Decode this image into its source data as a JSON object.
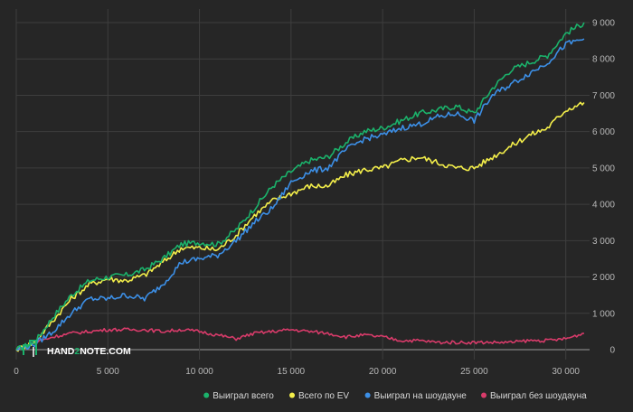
{
  "watermark": {
    "part1": "HAND",
    "part2": "2",
    "part3": "NOTE.COM"
  },
  "chart_data": {
    "type": "line",
    "title": "",
    "xlabel": "",
    "ylabel": "",
    "xlim": [
      0,
      31300
    ],
    "ylim": [
      -100,
      9100
    ],
    "x_ticks": [
      0,
      5000,
      10000,
      15000,
      20000,
      25000,
      30000
    ],
    "x_tick_labels": [
      "0",
      "5 000",
      "10 000",
      "15 000",
      "20 000",
      "25 000",
      "30 000"
    ],
    "y_ticks": [
      0,
      1000,
      2000,
      3000,
      4000,
      5000,
      6000,
      7000,
      8000,
      9000
    ],
    "y_tick_labels": [
      "0",
      "1 000",
      "2 000",
      "3 000",
      "4 000",
      "5 000",
      "6 000",
      "7 000",
      "8 000",
      "9 000"
    ],
    "y_axis_side": "right",
    "grid": true,
    "legend_position": "bottom-right",
    "x": [
      0,
      1000,
      2000,
      3000,
      4000,
      5000,
      6000,
      7000,
      8000,
      9000,
      10000,
      11000,
      12000,
      13000,
      14000,
      15000,
      16000,
      17000,
      18000,
      19000,
      20000,
      21000,
      22000,
      23000,
      24000,
      25000,
      26000,
      27000,
      28000,
      29000,
      30000,
      31000
    ],
    "series": [
      {
        "name": "Выиграл всего",
        "color": "#1bb26b",
        "values": [
          0,
          200,
          900,
          1500,
          1900,
          2000,
          2050,
          2200,
          2500,
          2900,
          2950,
          2900,
          3300,
          3900,
          4500,
          4900,
          5200,
          5300,
          5700,
          6000,
          6100,
          6300,
          6500,
          6600,
          6700,
          6500,
          7200,
          7700,
          7900,
          8100,
          8700,
          9000
        ]
      },
      {
        "name": "Всего по EV",
        "color": "#f3ee4a",
        "values": [
          0,
          200,
          800,
          1400,
          1800,
          1950,
          1900,
          2050,
          2400,
          2800,
          2800,
          2750,
          3150,
          3700,
          4100,
          4300,
          4500,
          4500,
          4800,
          4950,
          5000,
          5200,
          5300,
          5150,
          5000,
          5000,
          5300,
          5600,
          5900,
          6100,
          6600,
          6800
        ]
      },
      {
        "name": "Выиграл на шоудауне",
        "color": "#3c8fe6",
        "values": [
          0,
          150,
          500,
          1000,
          1400,
          1400,
          1500,
          1400,
          1800,
          2400,
          2500,
          2600,
          3000,
          3500,
          3900,
          4600,
          4900,
          5000,
          5500,
          5800,
          5900,
          6100,
          6200,
          6400,
          6500,
          6300,
          7000,
          7300,
          7600,
          7900,
          8400,
          8550
        ]
      },
      {
        "name": "Выиграл без шоудауна",
        "color": "#d83b6a",
        "values": [
          0,
          200,
          350,
          450,
          500,
          550,
          550,
          550,
          500,
          550,
          500,
          400,
          300,
          450,
          500,
          550,
          500,
          450,
          350,
          400,
          350,
          250,
          250,
          200,
          200,
          200,
          200,
          200,
          250,
          250,
          300,
          450
        ]
      }
    ]
  }
}
